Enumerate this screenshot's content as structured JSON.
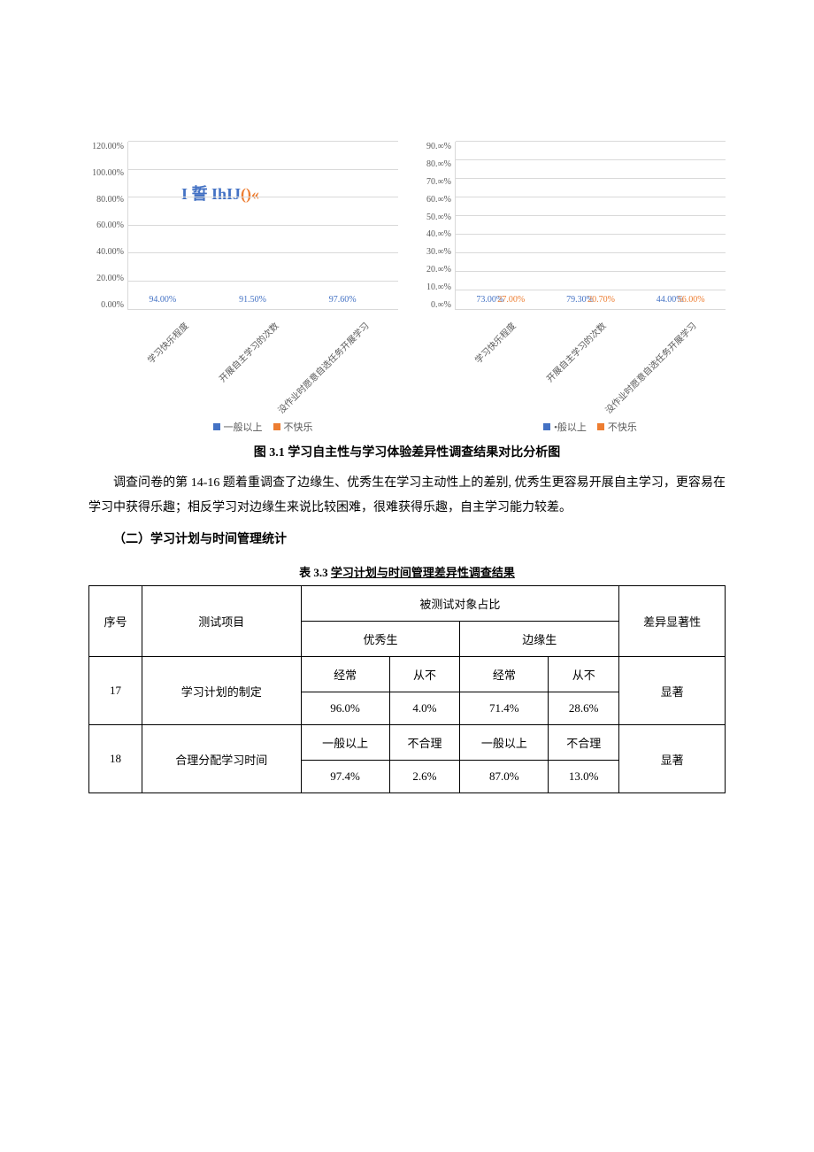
{
  "chart1": {
    "type": "bar",
    "ymax": 120,
    "yticks": [
      "120.00%",
      "100.00%",
      "80.00%",
      "60.00%",
      "40.00%",
      "20.00%",
      "0.00%"
    ],
    "categories": [
      "学习快乐程度",
      "开展自主学习的次数",
      "没作业时愿意自选任务开展学习"
    ],
    "series": [
      {
        "name": "一般以上",
        "color": "#4472c4",
        "values": [
          94.0,
          91.5,
          97.6
        ],
        "labels": [
          "94.00%",
          "91.50%",
          "97.60%"
        ]
      },
      {
        "name": "不快乐",
        "color": "#ed7d31",
        "values": [
          0,
          0,
          0
        ],
        "labels": [
          "",
          "",
          ""
        ]
      }
    ],
    "legend": [
      "一般以上",
      "不快乐"
    ],
    "legend_prefix": "■",
    "watermark_blue": "I 誓 IhIJ",
    "watermark_red": "()«",
    "grid_color": "#d9d9d9"
  },
  "chart2": {
    "type": "bar",
    "ymax": 90,
    "yticks": [
      "90.∞%",
      "80.∞%",
      "70.∞%",
      "60.∞%",
      "50.∞%",
      "40.∞%",
      "30.∞%",
      "20.∞%",
      "10.∞%",
      "0.∞%"
    ],
    "categories": [
      "学习快乐程度",
      "开展自主学习的次数",
      "没作业时愿意自选任务开展学习"
    ],
    "series": [
      {
        "name": "•般以上",
        "color": "#4472c4",
        "values": [
          73.0,
          79.3,
          44.0
        ],
        "labels": [
          "73.00%",
          "79.30%",
          "44.00%"
        ]
      },
      {
        "name": "不快乐",
        "color": "#ed7d31",
        "values": [
          27.0,
          20.7,
          56.0
        ],
        "labels": [
          "27.00%",
          "20.70%",
          "56.00%"
        ]
      }
    ],
    "legend": [
      "•般以上",
      "不快乐"
    ],
    "legend_prefix": "■",
    "grid_color": "#d9d9d9"
  },
  "fig_caption": "图 3.1 学习自主性与学习体验差异性调查结果对比分析图",
  "para1": "调查问卷的第 14-16 题着重调查了边缘生、优秀生在学习主动性上的差别, 优秀生更容易开展自主学习，更容易在学习中获得乐趣；相反学习对边缘生来说比较困难，很难获得乐趣，自主学习能力较差。",
  "section2": "（二）学习计划与时间管理统计",
  "table_caption_prefix": "表 3.3 ",
  "table_caption_underline": "学习计划与时间管理差异性调查结果",
  "table": {
    "head": {
      "c1": "序号",
      "c2": "测试项目",
      "c3": "被测试对象占比",
      "c4": "差异显著性",
      "sub1": "优秀生",
      "sub2": "边缘生"
    },
    "rows": [
      {
        "no": "17",
        "item": "学习计划的制定",
        "a1": "经常",
        "a2": "从不",
        "b1": "经常",
        "b2": "从不",
        "diff": "显著",
        "v1": "96.0%",
        "v2": "4.0%",
        "v3": "71.4%",
        "v4": "28.6%"
      },
      {
        "no": "18",
        "item": "合理分配学习时间",
        "a1": "一般以上",
        "a2": "不合理",
        "b1": "一般以上",
        "b2": "不合理",
        "diff": "显著",
        "v1": "97.4%",
        "v2": "2.6%",
        "v3": "87.0%",
        "v4": "13.0%"
      }
    ]
  }
}
